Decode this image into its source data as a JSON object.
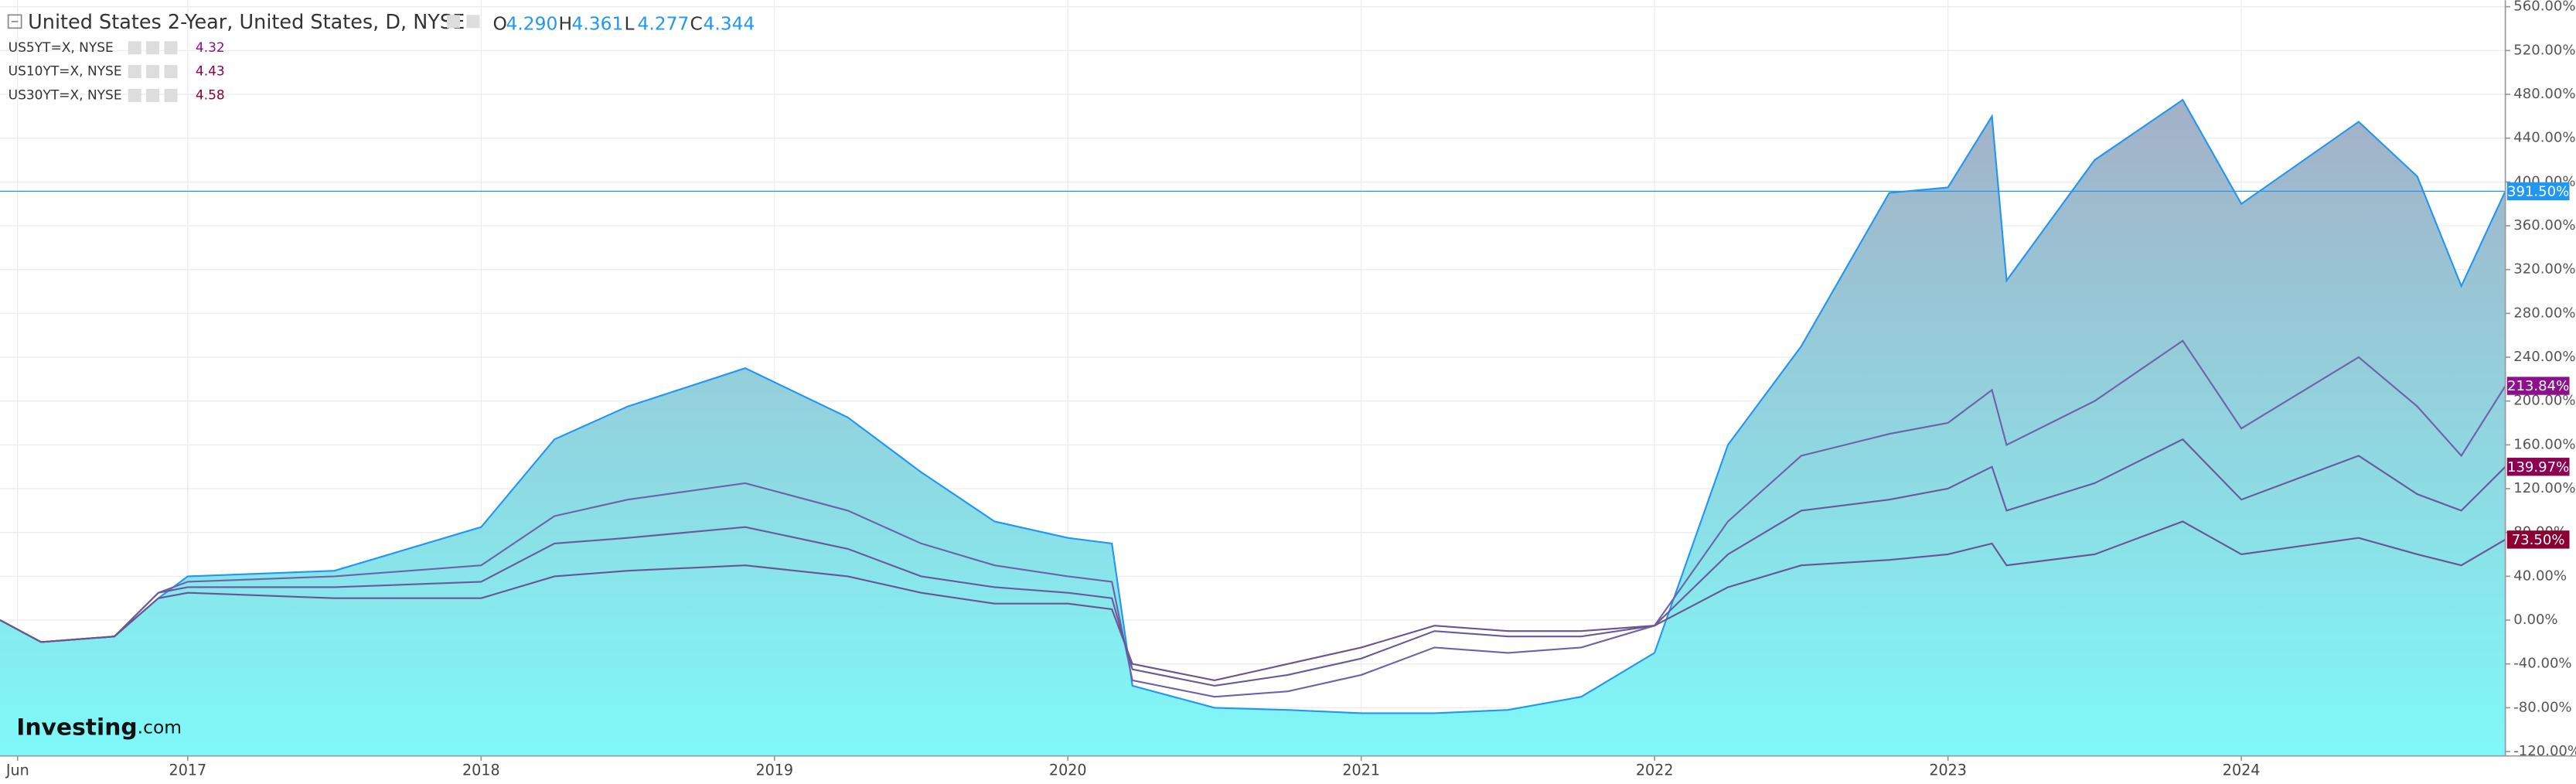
{
  "chart_data": {
    "type": "line",
    "title": "United States 2-Year, United States, D, NYSE",
    "ohlc": [
      {
        "label": "O",
        "value": "4.290"
      },
      {
        "label": "H",
        "value": "4.361"
      },
      {
        "label": "L",
        "value": "4.277"
      },
      {
        "label": "C",
        "value": "4.344"
      }
    ],
    "watermark": {
      "brand": "Investing",
      "suffix": ".com"
    },
    "x": [
      2016.36,
      2016.5,
      2016.75,
      2016.9,
      2017.0,
      2017.5,
      2018.0,
      2018.25,
      2018.5,
      2018.9,
      2019.25,
      2019.5,
      2019.75,
      2020.0,
      2020.15,
      2020.22,
      2020.5,
      2020.75,
      2021.0,
      2021.25,
      2021.5,
      2021.75,
      2022.0,
      2022.25,
      2022.5,
      2022.8,
      2023.0,
      2023.15,
      2023.2,
      2023.5,
      2023.8,
      2024.0,
      2024.4,
      2024.6,
      2024.75,
      2024.9
    ],
    "xlim": [
      2016.36,
      2024.9
    ],
    "xticks": [
      {
        "value": 2016.42,
        "label": "Jun"
      },
      2017,
      2018,
      2019,
      2020,
      2021,
      2022,
      2023,
      2024
    ],
    "ylim": [
      -124,
      566
    ],
    "yticks": [
      {
        "value": -120,
        "label": "-120.00%"
      },
      {
        "value": -80,
        "label": "-80.00%"
      },
      {
        "value": -40,
        "label": "-40.00%"
      },
      {
        "value": 0,
        "label": "0.00%"
      },
      {
        "value": 40,
        "label": "40.00%"
      },
      {
        "value": 80,
        "label": "80.00%"
      },
      {
        "value": 120,
        "label": "120.00%"
      },
      {
        "value": 160,
        "label": "160.00%"
      },
      {
        "value": 200,
        "label": "200.00%"
      },
      {
        "value": 240,
        "label": "240.00%"
      },
      {
        "value": 280,
        "label": "280.00%"
      },
      {
        "value": 320,
        "label": "320.00%"
      },
      {
        "value": 360,
        "label": "360.00%"
      },
      {
        "value": 400,
        "label": "400.00%"
      },
      {
        "value": 440,
        "label": "440.00%"
      },
      {
        "value": 480,
        "label": "480.00%"
      },
      {
        "value": 520,
        "label": "520.00%"
      },
      {
        "value": 560,
        "label": "560.00%"
      }
    ],
    "grid": true,
    "area_gradient": [
      "#a4b0c6",
      "#7ef9f9"
    ],
    "series": [
      {
        "name": "United States 2-Year, United States, D, NYSE",
        "color": "#2196f3",
        "area": true,
        "last_label": "391.50%",
        "label_color": "#2196f3",
        "values": [
          0,
          -20,
          -15,
          20,
          40,
          45,
          85,
          165,
          195,
          230,
          185,
          135,
          90,
          75,
          70,
          -60,
          -80,
          -82,
          -85,
          -85,
          -82,
          -70,
          -30,
          160,
          250,
          390,
          395,
          460,
          310,
          420,
          475,
          380,
          455,
          405,
          305,
          391.5
        ]
      },
      {
        "name": "US5YT=X, NYSE",
        "legend_value": "4.32",
        "color": "#6f62a8",
        "area": false,
        "last_label": "213.84%",
        "label_color": "#8e0e8e",
        "values": [
          0,
          -20,
          -15,
          25,
          35,
          40,
          50,
          95,
          110,
          125,
          100,
          70,
          50,
          40,
          35,
          -55,
          -70,
          -65,
          -50,
          -25,
          -30,
          -25,
          -5,
          90,
          150,
          170,
          180,
          210,
          160,
          200,
          255,
          175,
          240,
          195,
          150,
          213.84
        ]
      },
      {
        "name": "US10YT=X, NYSE",
        "legend_value": "4.43",
        "color": "#6a5a9a",
        "area": false,
        "last_label": "139.97%",
        "label_color": "#8b0050",
        "values": [
          0,
          -20,
          -15,
          25,
          30,
          30,
          35,
          70,
          75,
          85,
          65,
          40,
          30,
          25,
          20,
          -45,
          -60,
          -50,
          -35,
          -10,
          -15,
          -15,
          -5,
          60,
          100,
          110,
          120,
          140,
          100,
          125,
          165,
          110,
          150,
          115,
          100,
          139.97
        ]
      },
      {
        "name": "US30YT=X, NYSE",
        "legend_value": "4.58",
        "color": "#6a5590",
        "area": false,
        "last_label": "73.50%",
        "label_color": "#8b0030",
        "values": [
          0,
          -20,
          -15,
          20,
          25,
          20,
          20,
          40,
          45,
          50,
          40,
          25,
          15,
          15,
          10,
          -40,
          -55,
          -40,
          -25,
          -5,
          -10,
          -10,
          -5,
          30,
          50,
          55,
          60,
          70,
          50,
          60,
          90,
          60,
          75,
          60,
          50,
          73.5
        ]
      }
    ]
  }
}
